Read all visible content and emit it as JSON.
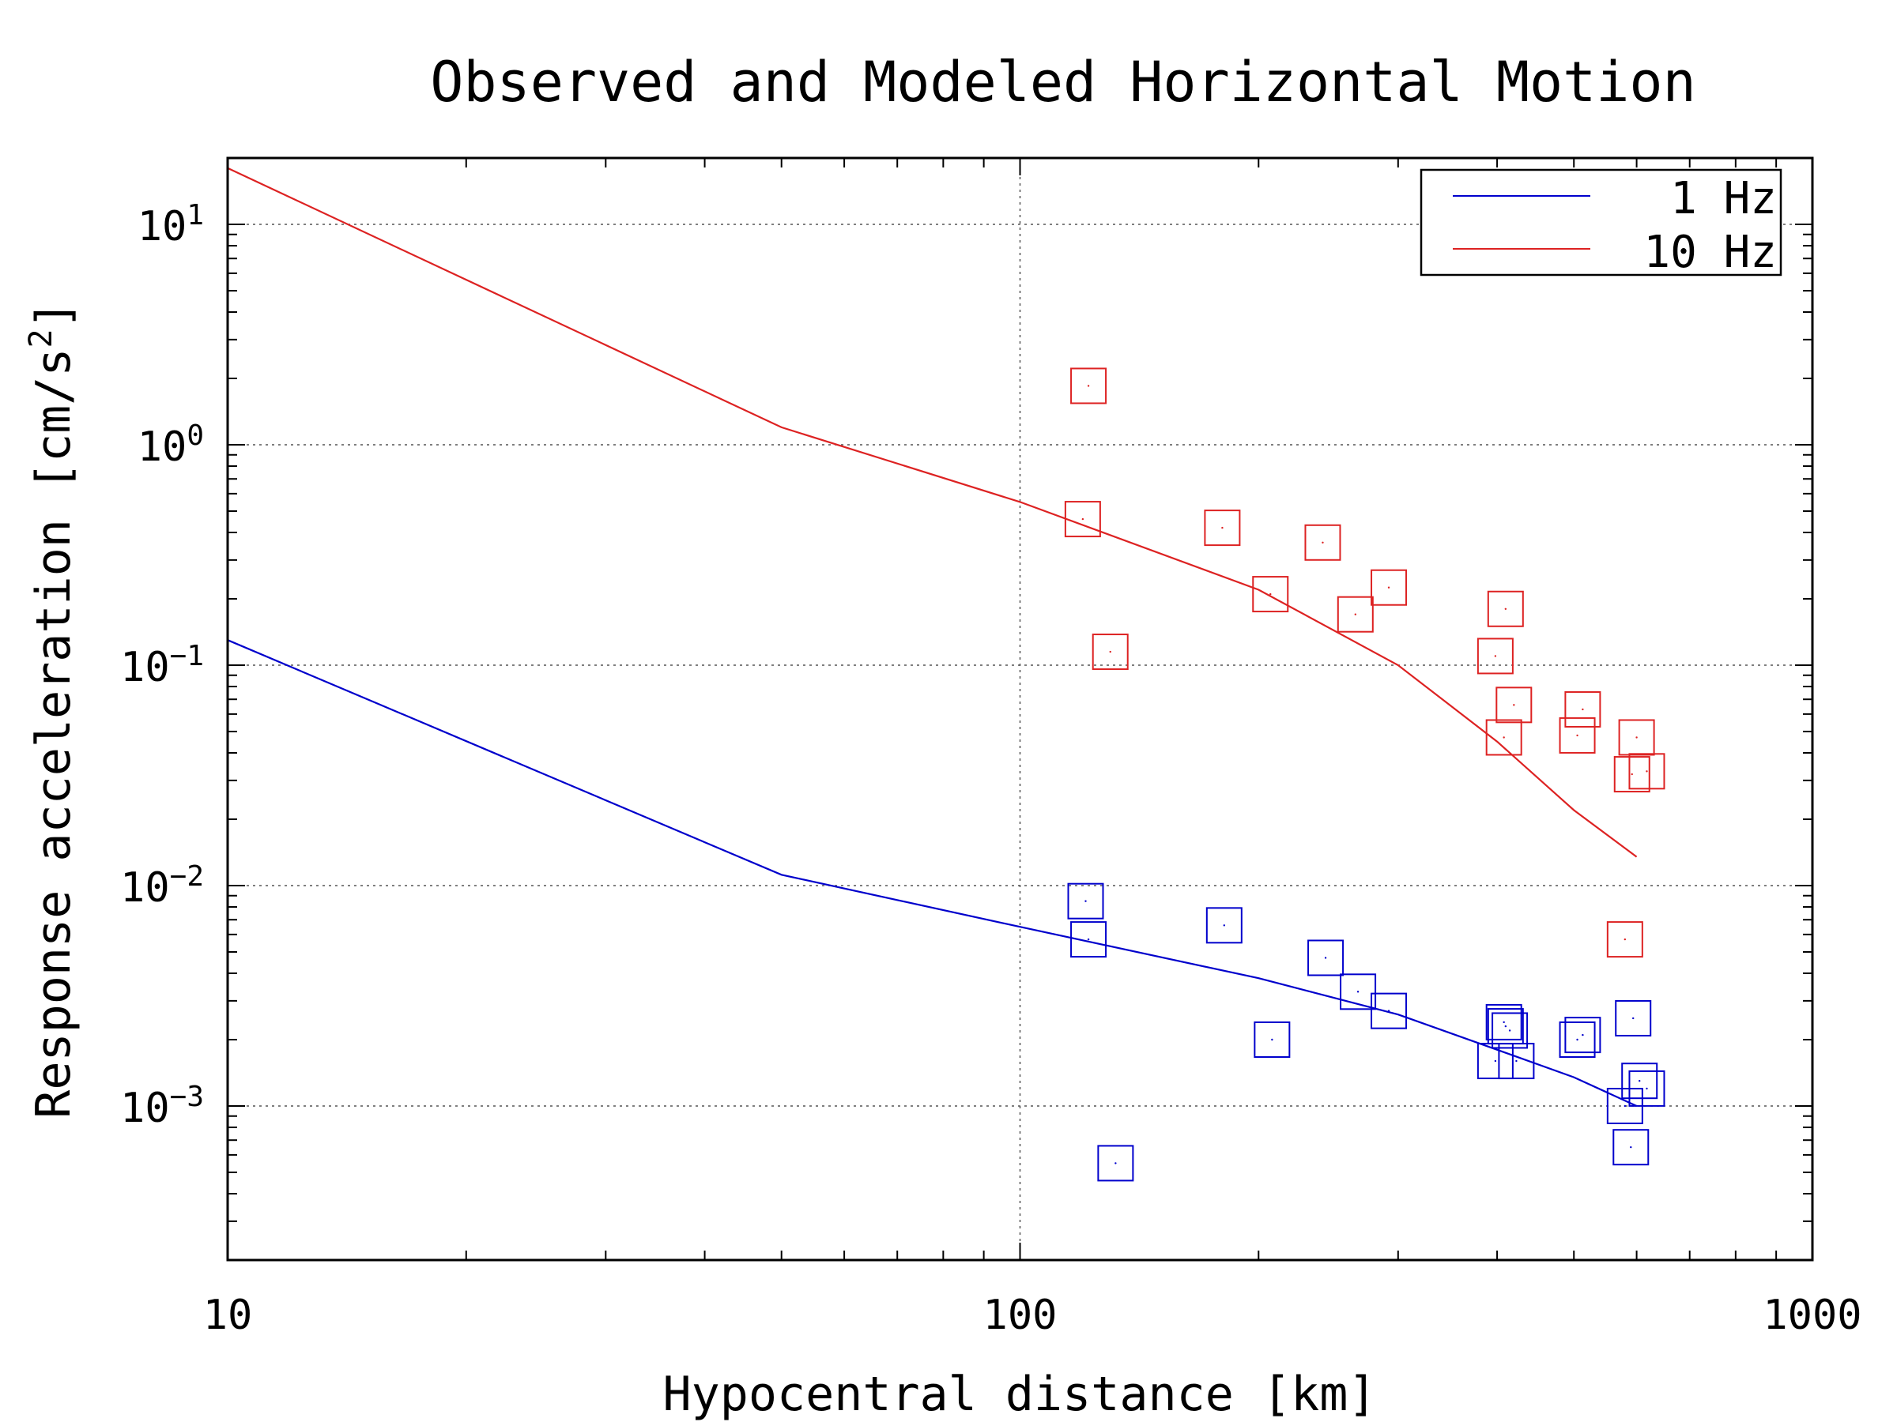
{
  "chart_data": {
    "type": "scatter",
    "title": "Observed and Modeled Horizontal Motion",
    "xlabel": "Hypocentral distance [km]",
    "ylabel_base": "Response acceleration [cm/s",
    "ylabel_sup": "2",
    "ylabel_end": "]",
    "xscale": "log",
    "yscale": "log",
    "xlim": [
      10,
      1000
    ],
    "ylim": [
      0.0002,
      20
    ],
    "x_ticks": [
      {
        "value": 10,
        "label": "10"
      },
      {
        "value": 100,
        "label": "100"
      },
      {
        "value": 1000,
        "label": "1000"
      }
    ],
    "y_ticks": [
      {
        "value": 10,
        "base": "10",
        "exp": "1"
      },
      {
        "value": 1,
        "base": "10",
        "exp": "0"
      },
      {
        "value": 0.1,
        "base": "10",
        "exp": "−1"
      },
      {
        "value": 0.01,
        "base": "10",
        "exp": "−2"
      },
      {
        "value": 0.001,
        "base": "10",
        "exp": "−3"
      }
    ],
    "grid": true,
    "legend_position": "top-right",
    "series": [
      {
        "name": "1 Hz",
        "color": "#0000cc",
        "model_line": {
          "x": [
            10,
            50,
            100,
            200,
            300,
            400,
            500,
            600
          ],
          "y": [
            0.13,
            0.0112,
            0.0065,
            0.0038,
            0.0026,
            0.0018,
            0.00135,
            0.001
          ]
        },
        "observed": {
          "x": [
            121,
            122,
            132,
            181,
            208,
            243,
            267,
            292,
            398,
            408,
            410,
            415,
            423,
            505,
            513,
            580,
            590,
            594,
            605,
            618
          ],
          "y": [
            0.0085,
            0.0057,
            0.00055,
            0.0066,
            0.002,
            0.0047,
            0.0033,
            0.0027,
            0.0016,
            0.0024,
            0.0023,
            0.0022,
            0.0016,
            0.002,
            0.0021,
            0.001,
            0.00065,
            0.0025,
            0.0013,
            0.0012
          ]
        }
      },
      {
        "name": "10 Hz",
        "color": "#dd2222",
        "model_line": {
          "x": [
            10,
            50,
            100,
            200,
            300,
            400,
            500,
            600
          ],
          "y": [
            18,
            1.2,
            0.55,
            0.22,
            0.1,
            0.045,
            0.022,
            0.0135
          ]
        },
        "observed": {
          "x": [
            120,
            122,
            130,
            180,
            207,
            241,
            265,
            292,
            398,
            408,
            410,
            420,
            505,
            513,
            580,
            592,
            600,
            618
          ],
          "y": [
            0.46,
            1.85,
            0.115,
            0.42,
            0.21,
            0.36,
            0.17,
            0.225,
            0.11,
            0.047,
            0.18,
            0.066,
            0.048,
            0.063,
            0.0057,
            0.032,
            0.047,
            0.033
          ]
        }
      }
    ]
  }
}
